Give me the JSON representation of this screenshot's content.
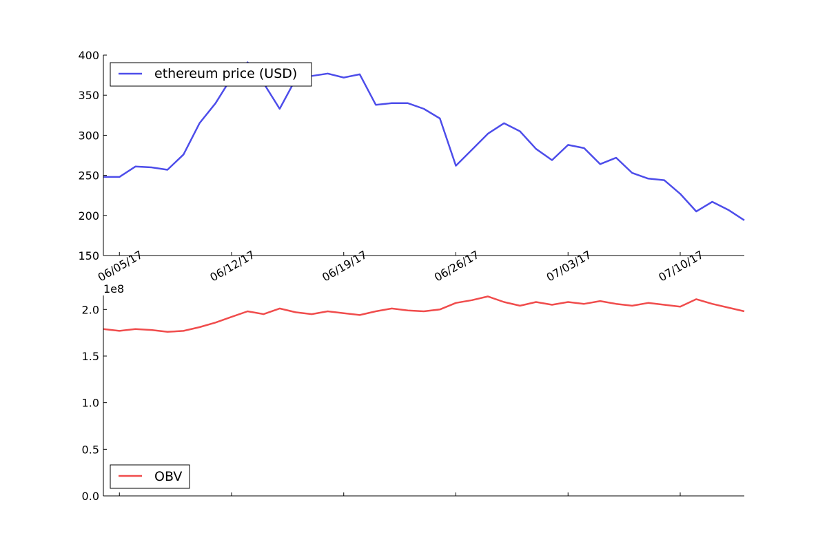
{
  "chart_data": [
    {
      "type": "line",
      "title": "",
      "xlabel": "",
      "ylabel": "",
      "ylim": [
        150,
        400
      ],
      "yticks": [
        150,
        200,
        250,
        300,
        350,
        400
      ],
      "x_start": "06/04/17",
      "x_end": "07/14/17",
      "xticks": [
        "06/05/17",
        "06/12/17",
        "06/19/17",
        "06/26/17",
        "07/03/17",
        "07/10/17"
      ],
      "grid": false,
      "legend_position": "top-left",
      "series": [
        {
          "name": "ethereum price (USD)",
          "color": "#4d4dea",
          "x": [
            "06/04/17",
            "06/05/17",
            "06/06/17",
            "06/07/17",
            "06/08/17",
            "06/09/17",
            "06/10/17",
            "06/11/17",
            "06/12/17",
            "06/13/17",
            "06/14/17",
            "06/15/17",
            "06/16/17",
            "06/17/17",
            "06/18/17",
            "06/19/17",
            "06/20/17",
            "06/21/17",
            "06/22/17",
            "06/23/17",
            "06/24/17",
            "06/25/17",
            "06/26/17",
            "06/27/17",
            "06/28/17",
            "06/29/17",
            "06/30/17",
            "07/01/17",
            "07/02/17",
            "07/03/17",
            "07/04/17",
            "07/05/17",
            "07/06/17",
            "07/07/17",
            "07/08/17",
            "07/09/17",
            "07/10/17",
            "07/11/17",
            "07/12/17",
            "07/13/17",
            "07/14/17"
          ],
          "values": [
            248,
            248,
            261,
            260,
            257,
            276,
            315,
            340,
            372,
            391,
            365,
            333,
            370,
            374,
            377,
            372,
            376,
            338,
            340,
            340,
            333,
            321,
            262,
            282,
            302,
            315,
            305,
            283,
            269,
            288,
            284,
            264,
            272,
            253,
            246,
            244,
            227,
            205,
            217,
            207,
            194
          ]
        }
      ]
    },
    {
      "type": "line",
      "title": "",
      "xlabel": "",
      "ylabel": "",
      "ylim": [
        0,
        2.15
      ],
      "yticks": [
        "0.0",
        "0.5",
        "1.0",
        "1.5",
        "2.0"
      ],
      "offset_text": "1e8",
      "grid": false,
      "legend_position": "bottom-left",
      "series": [
        {
          "name": "OBV",
          "color": "#f04c4c",
          "x": [
            "06/04/17",
            "06/05/17",
            "06/06/17",
            "06/07/17",
            "06/08/17",
            "06/09/17",
            "06/10/17",
            "06/11/17",
            "06/12/17",
            "06/13/17",
            "06/14/17",
            "06/15/17",
            "06/16/17",
            "06/17/17",
            "06/18/17",
            "06/19/17",
            "06/20/17",
            "06/21/17",
            "06/22/17",
            "06/23/17",
            "06/24/17",
            "06/25/17",
            "06/26/17",
            "06/27/17",
            "06/28/17",
            "06/29/17",
            "06/30/17",
            "07/01/17",
            "07/02/17",
            "07/03/17",
            "07/04/17",
            "07/05/17",
            "07/06/17",
            "07/07/17",
            "07/08/17",
            "07/09/17",
            "07/10/17",
            "07/11/17",
            "07/12/17",
            "07/13/17",
            "07/14/17"
          ],
          "values": [
            1.79,
            1.77,
            1.79,
            1.78,
            1.76,
            1.77,
            1.81,
            1.86,
            1.92,
            1.98,
            1.95,
            2.01,
            1.97,
            1.95,
            1.98,
            1.96,
            1.94,
            1.98,
            2.01,
            1.99,
            1.98,
            2.0,
            2.07,
            2.1,
            2.14,
            2.08,
            2.04,
            2.08,
            2.05,
            2.08,
            2.06,
            2.09,
            2.06,
            2.04,
            2.07,
            2.05,
            2.03,
            2.11,
            2.06,
            2.02,
            1.98
          ]
        }
      ]
    }
  ]
}
